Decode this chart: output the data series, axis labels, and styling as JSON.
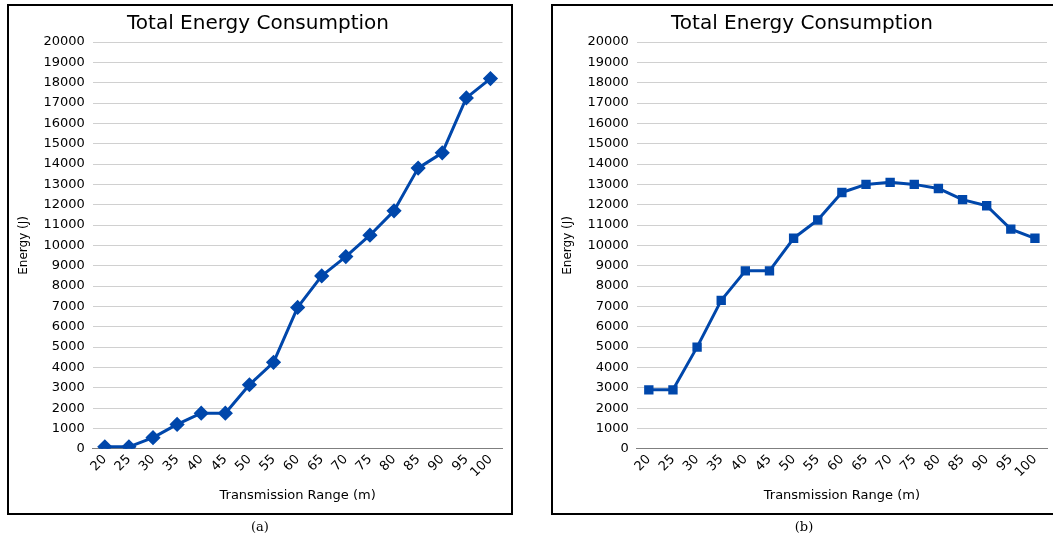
{
  "chart_data": [
    {
      "type": "line",
      "title": "Total Energy Consumption",
      "xlabel": "Transmission Range (m)",
      "ylabel": "Energy (J)",
      "categories": [
        "20",
        "25",
        "30",
        "35",
        "40",
        "45",
        "50",
        "55",
        "60",
        "65",
        "70",
        "75",
        "80",
        "85",
        "90",
        "95",
        "100"
      ],
      "series": [
        {
          "color": "#0047ab",
          "values": [
            100,
            100,
            550,
            1200,
            1750,
            1750,
            3150,
            4250,
            6950,
            8500,
            9450,
            10500,
            11700,
            13800,
            14550,
            17250,
            18200
          ]
        }
      ],
      "ylim": [
        0,
        20000
      ],
      "yticks": [
        0,
        1000,
        2000,
        3000,
        4000,
        5000,
        6000,
        7000,
        8000,
        9000,
        10000,
        11000,
        12000,
        13000,
        14000,
        15000,
        16000,
        17000,
        18000,
        19000,
        20000
      ],
      "grid": "y",
      "marker": "diamond",
      "annotations": [
        "(a)"
      ]
    },
    {
      "type": "line",
      "title": "Total Energy Consumption",
      "xlabel": "Transmission Range (m)",
      "ylabel": "Energy (J)",
      "categories": [
        "20",
        "25",
        "30",
        "35",
        "40",
        "45",
        "50",
        "55",
        "60",
        "65",
        "70",
        "75",
        "80",
        "85",
        "90",
        "95",
        "100"
      ],
      "series": [
        {
          "color": "#0047ab",
          "values": [
            2900,
            2900,
            5000,
            7300,
            8750,
            8750,
            10350,
            11250,
            12600,
            13000,
            13100,
            13000,
            12800,
            12250,
            11950,
            10800,
            10350
          ]
        }
      ],
      "ylim": [
        0,
        20000
      ],
      "yticks": [
        0,
        1000,
        2000,
        3000,
        4000,
        5000,
        6000,
        7000,
        8000,
        9000,
        10000,
        11000,
        12000,
        13000,
        14000,
        15000,
        16000,
        17000,
        18000,
        19000,
        20000
      ],
      "grid": "y",
      "marker": "square",
      "annotations": [
        "(b)"
      ]
    }
  ]
}
